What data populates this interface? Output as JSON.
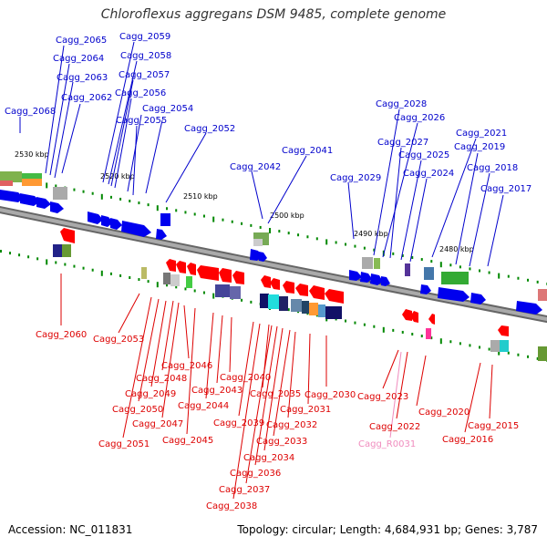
{
  "title": "Chloroflexus aggregans DSM 9485, complete genome",
  "footer": {
    "accession": "Accession: NC_011831",
    "summary": "Topology: circular; Length: 4,684,931 bp; Genes: 3,787"
  },
  "colors": {
    "forward_label": "#0000cc",
    "reverse_label": "#dd0000",
    "rna_label": "#f08cbe",
    "forward_gene": "#0000ee",
    "reverse_gene": "#ff0000",
    "backbone": "#888888",
    "tick": "#008800"
  },
  "scale_labels": [
    {
      "text": "2530 kbp"
    },
    {
      "text": "2520 kbp"
    },
    {
      "text": "2510 kbp"
    },
    {
      "text": "2500 kbp"
    },
    {
      "text": "2490 kbp"
    },
    {
      "text": "2480 kbp"
    }
  ],
  "forward_labels": [
    {
      "text": "Cagg_2065"
    },
    {
      "text": "Cagg_2064"
    },
    {
      "text": "Cagg_2063"
    },
    {
      "text": "Cagg_2062"
    },
    {
      "text": "Cagg_2068"
    },
    {
      "text": "Cagg_2059"
    },
    {
      "text": "Cagg_2058"
    },
    {
      "text": "Cagg_2057"
    },
    {
      "text": "Cagg_2056"
    },
    {
      "text": "Cagg_2054"
    },
    {
      "text": "Cagg_2055"
    },
    {
      "text": "Cagg_2052"
    },
    {
      "text": "Cagg_2041"
    },
    {
      "text": "Cagg_2042"
    },
    {
      "text": "Cagg_2029"
    },
    {
      "text": "Cagg_2028"
    },
    {
      "text": "Cagg_2026"
    },
    {
      "text": "Cagg_2027"
    },
    {
      "text": "Cagg_2025"
    },
    {
      "text": "Cagg_2024"
    },
    {
      "text": "Cagg_2021"
    },
    {
      "text": "Cagg_2019"
    },
    {
      "text": "Cagg_2018"
    },
    {
      "text": "Cagg_2017"
    }
  ],
  "reverse_labels": [
    {
      "text": "Cagg_2060"
    },
    {
      "text": "Cagg_2053"
    },
    {
      "text": "Cagg_2046"
    },
    {
      "text": "Cagg_2048"
    },
    {
      "text": "Cagg_2049"
    },
    {
      "text": "Cagg_2050"
    },
    {
      "text": "Cagg_2047"
    },
    {
      "text": "Cagg_2051"
    },
    {
      "text": "Cagg_2045"
    },
    {
      "text": "Cagg_2044"
    },
    {
      "text": "Cagg_2043"
    },
    {
      "text": "Cagg_2040"
    },
    {
      "text": "Cagg_2039"
    },
    {
      "text": "Cagg_2035"
    },
    {
      "text": "Cagg_2031"
    },
    {
      "text": "Cagg_2030"
    },
    {
      "text": "Cagg_2032"
    },
    {
      "text": "Cagg_2033"
    },
    {
      "text": "Cagg_2034"
    },
    {
      "text": "Cagg_2036"
    },
    {
      "text": "Cagg_2037"
    },
    {
      "text": "Cagg_2038"
    },
    {
      "text": "Cagg_2023"
    },
    {
      "text": "Cagg_2022"
    },
    {
      "text": "Cagg_2020"
    },
    {
      "text": "Cagg_2015"
    },
    {
      "text": "Cagg_2016"
    }
  ],
  "rna_labels": [
    {
      "text": "Cagg_R0031"
    }
  ]
}
